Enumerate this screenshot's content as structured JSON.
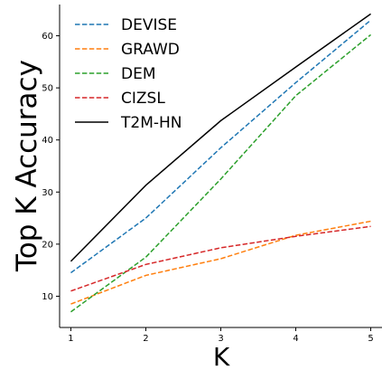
{
  "chart_data": {
    "type": "line",
    "xlabel": "K",
    "ylabel": "Top K Accuracy",
    "x": [
      1,
      2,
      3,
      4,
      5
    ],
    "xlim": [
      0.85,
      5.15
    ],
    "ylim": [
      4,
      66
    ],
    "xticks": [
      1,
      2,
      3,
      4,
      5
    ],
    "yticks": [
      10,
      20,
      30,
      40,
      50,
      60
    ],
    "grid": false,
    "legend_position": "top-left",
    "series": [
      {
        "name": "DEVISE",
        "values": [
          14.5,
          25.0,
          38.5,
          51.0,
          63.0
        ],
        "color": "#1f77b4",
        "dashed": true
      },
      {
        "name": "GRAWD",
        "values": [
          8.5,
          14.0,
          17.2,
          21.7,
          24.4
        ],
        "color": "#ff7f0e",
        "dashed": true
      },
      {
        "name": "DEM",
        "values": [
          7.0,
          17.5,
          32.5,
          48.5,
          60.2
        ],
        "color": "#2ca02c",
        "dashed": true
      },
      {
        "name": "CIZSL",
        "values": [
          11.0,
          16.1,
          19.3,
          21.5,
          23.4
        ],
        "color": "#d62728",
        "dashed": true
      },
      {
        "name": "T2M-HN",
        "values": [
          16.7,
          31.3,
          43.7,
          54.0,
          64.2
        ],
        "color": "#000000",
        "dashed": false
      }
    ]
  }
}
